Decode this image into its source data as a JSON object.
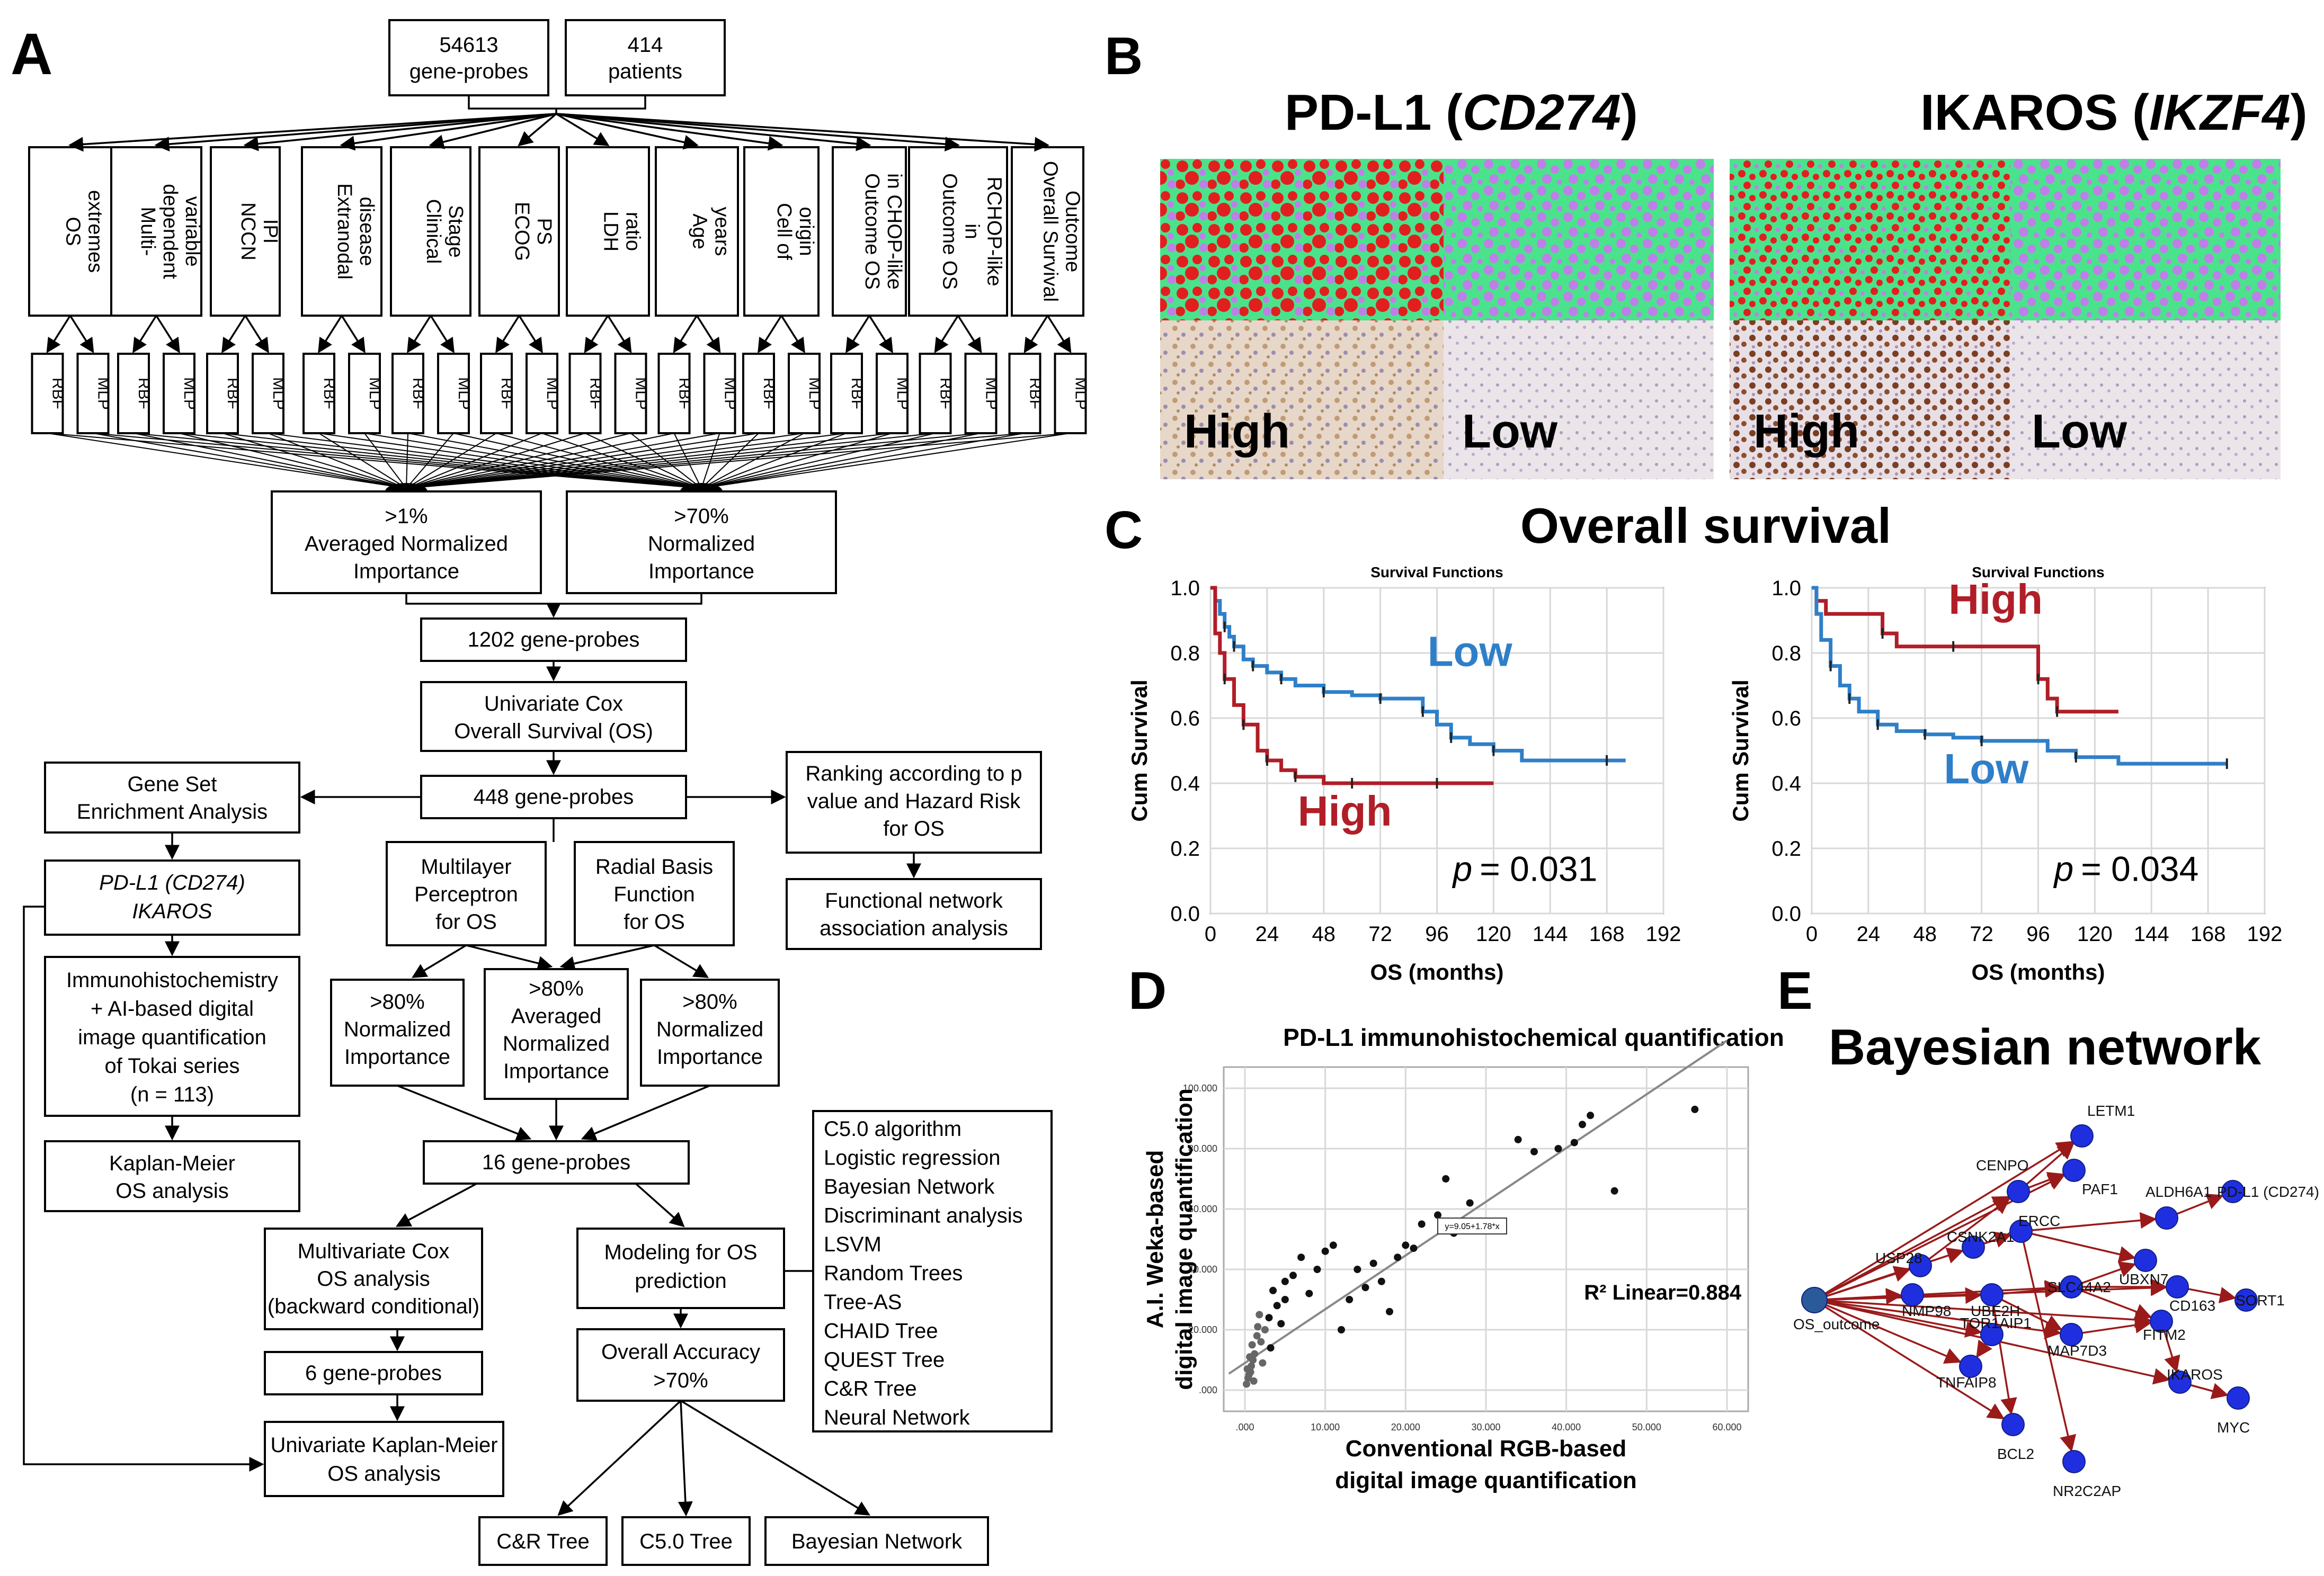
{
  "panel_labels": {
    "a": "A",
    "b": "B",
    "c": "C",
    "d": "D",
    "e": "E"
  },
  "panel_a": {
    "top_boxes": [
      [
        "54613",
        "gene-probes"
      ],
      [
        "414",
        "patients"
      ]
    ],
    "variables": [
      [
        "OS",
        "extremes"
      ],
      [
        "Multi-",
        "dependent",
        "variable"
      ],
      [
        "NCCN",
        "IPI"
      ],
      [
        "Extranodal",
        "disease"
      ],
      [
        "Clinical",
        "Stage"
      ],
      [
        "ECOG",
        "PS"
      ],
      [
        "LDH",
        "ratio"
      ],
      [
        "Age",
        "years"
      ],
      [
        "Cell of",
        "origin"
      ],
      [
        "Outcome OS",
        "in CHOP-like"
      ],
      [
        "Outcome OS",
        "in",
        "RCHOP-like"
      ],
      [
        "Overall Survival",
        "Outcome"
      ]
    ],
    "rbf": "RBF",
    "mlp": "MLP",
    "importance_left": [
      ">1%",
      "Averaged Normalized",
      "Importance"
    ],
    "importance_right": [
      ">70%",
      "Normalized",
      "Importance"
    ],
    "probes_1202": "1202 gene-probes",
    "cox": [
      "Univariate Cox",
      "Overall Survival (OS)"
    ],
    "probes_448": "448 gene-probes",
    "gsea": [
      "Gene Set",
      "Enrichment Analysis"
    ],
    "ranking": [
      "Ranking according to p",
      "value and Hazard Risk",
      "for OS"
    ],
    "functional": [
      "Functional network",
      "association analysis"
    ],
    "pdl1_ikaros": [
      "PD-L1 (CD274)",
      "IKAROS"
    ],
    "ihc": [
      "Immunohistochemistry",
      "+ AI-based digital",
      "image quantification",
      "of Tokai series",
      "(n = 113)"
    ],
    "km_left": [
      "Kaplan-Meier",
      "OS analysis"
    ],
    "mlp_box": [
      "Multilayer",
      "Perceptron",
      "for OS"
    ],
    "rbf_box": [
      "Radial Basis",
      "Function",
      "for OS"
    ],
    "imp80_left": [
      ">80%",
      "Normalized",
      "Importance"
    ],
    "imp80_mid": [
      ">80%",
      "Averaged",
      "Normalized",
      "Importance"
    ],
    "imp80_right": [
      ">80%",
      "Normalized",
      "Importance"
    ],
    "probes_16": "16 gene-probes",
    "algorithms": [
      "C5.0 algorithm",
      "Logistic regression",
      "Bayesian Network",
      "Discriminant analysis",
      "LSVM",
      "Random Trees",
      "Tree-AS",
      "CHAID Tree",
      "QUEST Tree",
      "C&R Tree",
      "Neural Network"
    ],
    "multivar": [
      "Multivariate Cox",
      "OS analysis",
      "(backward conditional)"
    ],
    "modeling": [
      "Modeling for OS",
      "prediction"
    ],
    "probes_6": "6 gene-probes",
    "accuracy": [
      "Overall Accuracy",
      ">70%"
    ],
    "univ_km": [
      "Univariate Kaplan-Meier",
      "OS analysis"
    ],
    "outputs": [
      "C&R Tree",
      "C5.0 Tree",
      "Bayesian Network"
    ]
  },
  "panel_b": {
    "pdl1_title": "PD-L1 (",
    "pdl1_gene": "CD274",
    "ikaros_title": "IKAROS (",
    "ikaros_gene": "IKZF4",
    "close": ")",
    "high": "High",
    "low": "Low",
    "colors": {
      "red": "#e21f1f",
      "green": "#4be28c",
      "purple": "#bf7fe8",
      "tissue": "#e9e0d8",
      "brown": "#b07a4a"
    }
  },
  "panel_c": {
    "title": "Overall survival",
    "plot_title": "Survival Functions",
    "ylabel": "Cum Survival",
    "xlabel": "OS (months)",
    "x_ticks": [
      "0",
      "24",
      "48",
      "72",
      "96",
      "120",
      "144",
      "168",
      "192"
    ],
    "y_ticks": [
      "0.0",
      "0.2",
      "0.4",
      "0.6",
      "0.8",
      "1.0"
    ],
    "p_prefix": "p",
    "p_left": "= 0.031",
    "p_right": "= 0.034",
    "label_low": "Low",
    "label_high": "High"
  },
  "chart_data": [
    {
      "type": "line",
      "title": "Survival Functions",
      "xlabel": "OS (months)",
      "ylabel": "Cum Survival",
      "xlim": [
        0,
        192
      ],
      "ylim": [
        0,
        1
      ],
      "series": [
        {
          "name": "Low",
          "color": "#2f7fc8",
          "x": [
            0,
            2,
            4,
            6,
            8,
            10,
            14,
            18,
            24,
            30,
            36,
            48,
            60,
            72,
            84,
            90,
            96,
            102,
            110,
            120,
            132,
            168,
            176
          ],
          "y": [
            1.0,
            0.96,
            0.92,
            0.88,
            0.85,
            0.82,
            0.78,
            0.76,
            0.74,
            0.72,
            0.7,
            0.68,
            0.67,
            0.66,
            0.66,
            0.62,
            0.58,
            0.54,
            0.52,
            0.5,
            0.47,
            0.47,
            0.47
          ]
        },
        {
          "name": "High",
          "color": "#b01e28",
          "x": [
            0,
            2,
            4,
            6,
            10,
            14,
            20,
            24,
            30,
            36,
            48,
            60,
            72,
            96,
            120
          ],
          "y": [
            1.0,
            0.86,
            0.8,
            0.72,
            0.64,
            0.58,
            0.5,
            0.47,
            0.44,
            0.42,
            0.4,
            0.4,
            0.4,
            0.4,
            0.4
          ]
        }
      ],
      "p_value": "p = 0.031"
    },
    {
      "type": "line",
      "title": "Survival Functions",
      "xlabel": "OS (months)",
      "ylabel": "Cum Survival",
      "xlim": [
        0,
        192
      ],
      "ylim": [
        0,
        1
      ],
      "series": [
        {
          "name": "High",
          "color": "#b01e28",
          "x": [
            0,
            2,
            6,
            30,
            36,
            60,
            90,
            96,
            100,
            104,
            130
          ],
          "y": [
            1.0,
            0.96,
            0.92,
            0.86,
            0.82,
            0.82,
            0.82,
            0.72,
            0.66,
            0.62,
            0.62
          ]
        },
        {
          "name": "Low",
          "color": "#2f7fc8",
          "x": [
            0,
            2,
            4,
            8,
            12,
            16,
            20,
            28,
            36,
            48,
            60,
            72,
            100,
            112,
            130,
            176
          ],
          "y": [
            1.0,
            0.92,
            0.84,
            0.76,
            0.7,
            0.66,
            0.62,
            0.58,
            0.56,
            0.55,
            0.54,
            0.53,
            0.5,
            0.48,
            0.46,
            0.46
          ]
        }
      ],
      "p_value": "p = 0.034"
    },
    {
      "type": "scatter",
      "title": "PD-L1 immunohistochemical quantification",
      "xlabel": "Conventional RGB-based digital image quantification",
      "ylabel": "A.I. Weka-based digital image quantification",
      "xlim": [
        0,
        60000
      ],
      "ylim": [
        0,
        100000
      ],
      "x_ticks": [
        ".000",
        "10.000",
        "20.000",
        "30.000",
        "40.000",
        "50.000",
        "60.000"
      ],
      "y_ticks": [
        ".000",
        "20.000",
        "40.000",
        "60.000",
        "80.000",
        "100.000"
      ],
      "fit_label": "y=9.05+1.78*x",
      "r2": "R² Linear=0.884",
      "points": [
        [
          56000,
          93000
        ],
        [
          43000,
          91000
        ],
        [
          42000,
          88000
        ],
        [
          41000,
          82000
        ],
        [
          39000,
          80000
        ],
        [
          46000,
          66000
        ],
        [
          34000,
          83000
        ],
        [
          36000,
          79000
        ],
        [
          28000,
          62000
        ],
        [
          31000,
          55000
        ],
        [
          25000,
          70000
        ],
        [
          24000,
          58000
        ],
        [
          22000,
          55000
        ],
        [
          21000,
          47000
        ],
        [
          19000,
          44000
        ],
        [
          17000,
          36000
        ],
        [
          15000,
          34000
        ],
        [
          13000,
          30000
        ],
        [
          11000,
          48000
        ],
        [
          10000,
          46000
        ],
        [
          9000,
          40000
        ],
        [
          8000,
          32000
        ],
        [
          7000,
          44000
        ],
        [
          6000,
          38000
        ],
        [
          5000,
          30000
        ],
        [
          5000,
          36000
        ],
        [
          4000,
          28000
        ],
        [
          3500,
          33000
        ],
        [
          3000,
          24000
        ],
        [
          2500,
          20000
        ],
        [
          2000,
          16000
        ],
        [
          1800,
          25000
        ],
        [
          1500,
          18000
        ],
        [
          1200,
          12000
        ],
        [
          1000,
          10000
        ],
        [
          900,
          15000
        ],
        [
          800,
          8000
        ],
        [
          700,
          6000
        ],
        [
          600,
          11000
        ],
        [
          500,
          5000
        ],
        [
          400,
          4000
        ],
        [
          300,
          7000
        ],
        [
          12000,
          20000
        ],
        [
          14000,
          40000
        ],
        [
          18000,
          26000
        ],
        [
          20000,
          48000
        ],
        [
          26000,
          52000
        ],
        [
          16000,
          42000
        ],
        [
          4500,
          22000
        ],
        [
          3200,
          14000
        ],
        [
          2200,
          9000
        ],
        [
          1600,
          21000
        ],
        [
          1100,
          3000
        ],
        [
          200,
          2000
        ]
      ]
    }
  ],
  "panel_e": {
    "title": "Bayesian network",
    "nodes": [
      "OS_outcome",
      "LETM1",
      "CENPO",
      "PAF1",
      "ALDH6A1",
      "PD-L1 (CD274)",
      "USP28",
      "CSNK2A1",
      "ERCC",
      "UBXN7",
      "NMP98",
      "UBE2H",
      "SLC44A2",
      "CD163",
      "SORT1",
      "TOR1AIP1",
      "MAP7D3",
      "FITM2",
      "TNFAIP8",
      "IKAROS",
      "MYC",
      "BCL2",
      "NR2C2AP"
    ]
  }
}
